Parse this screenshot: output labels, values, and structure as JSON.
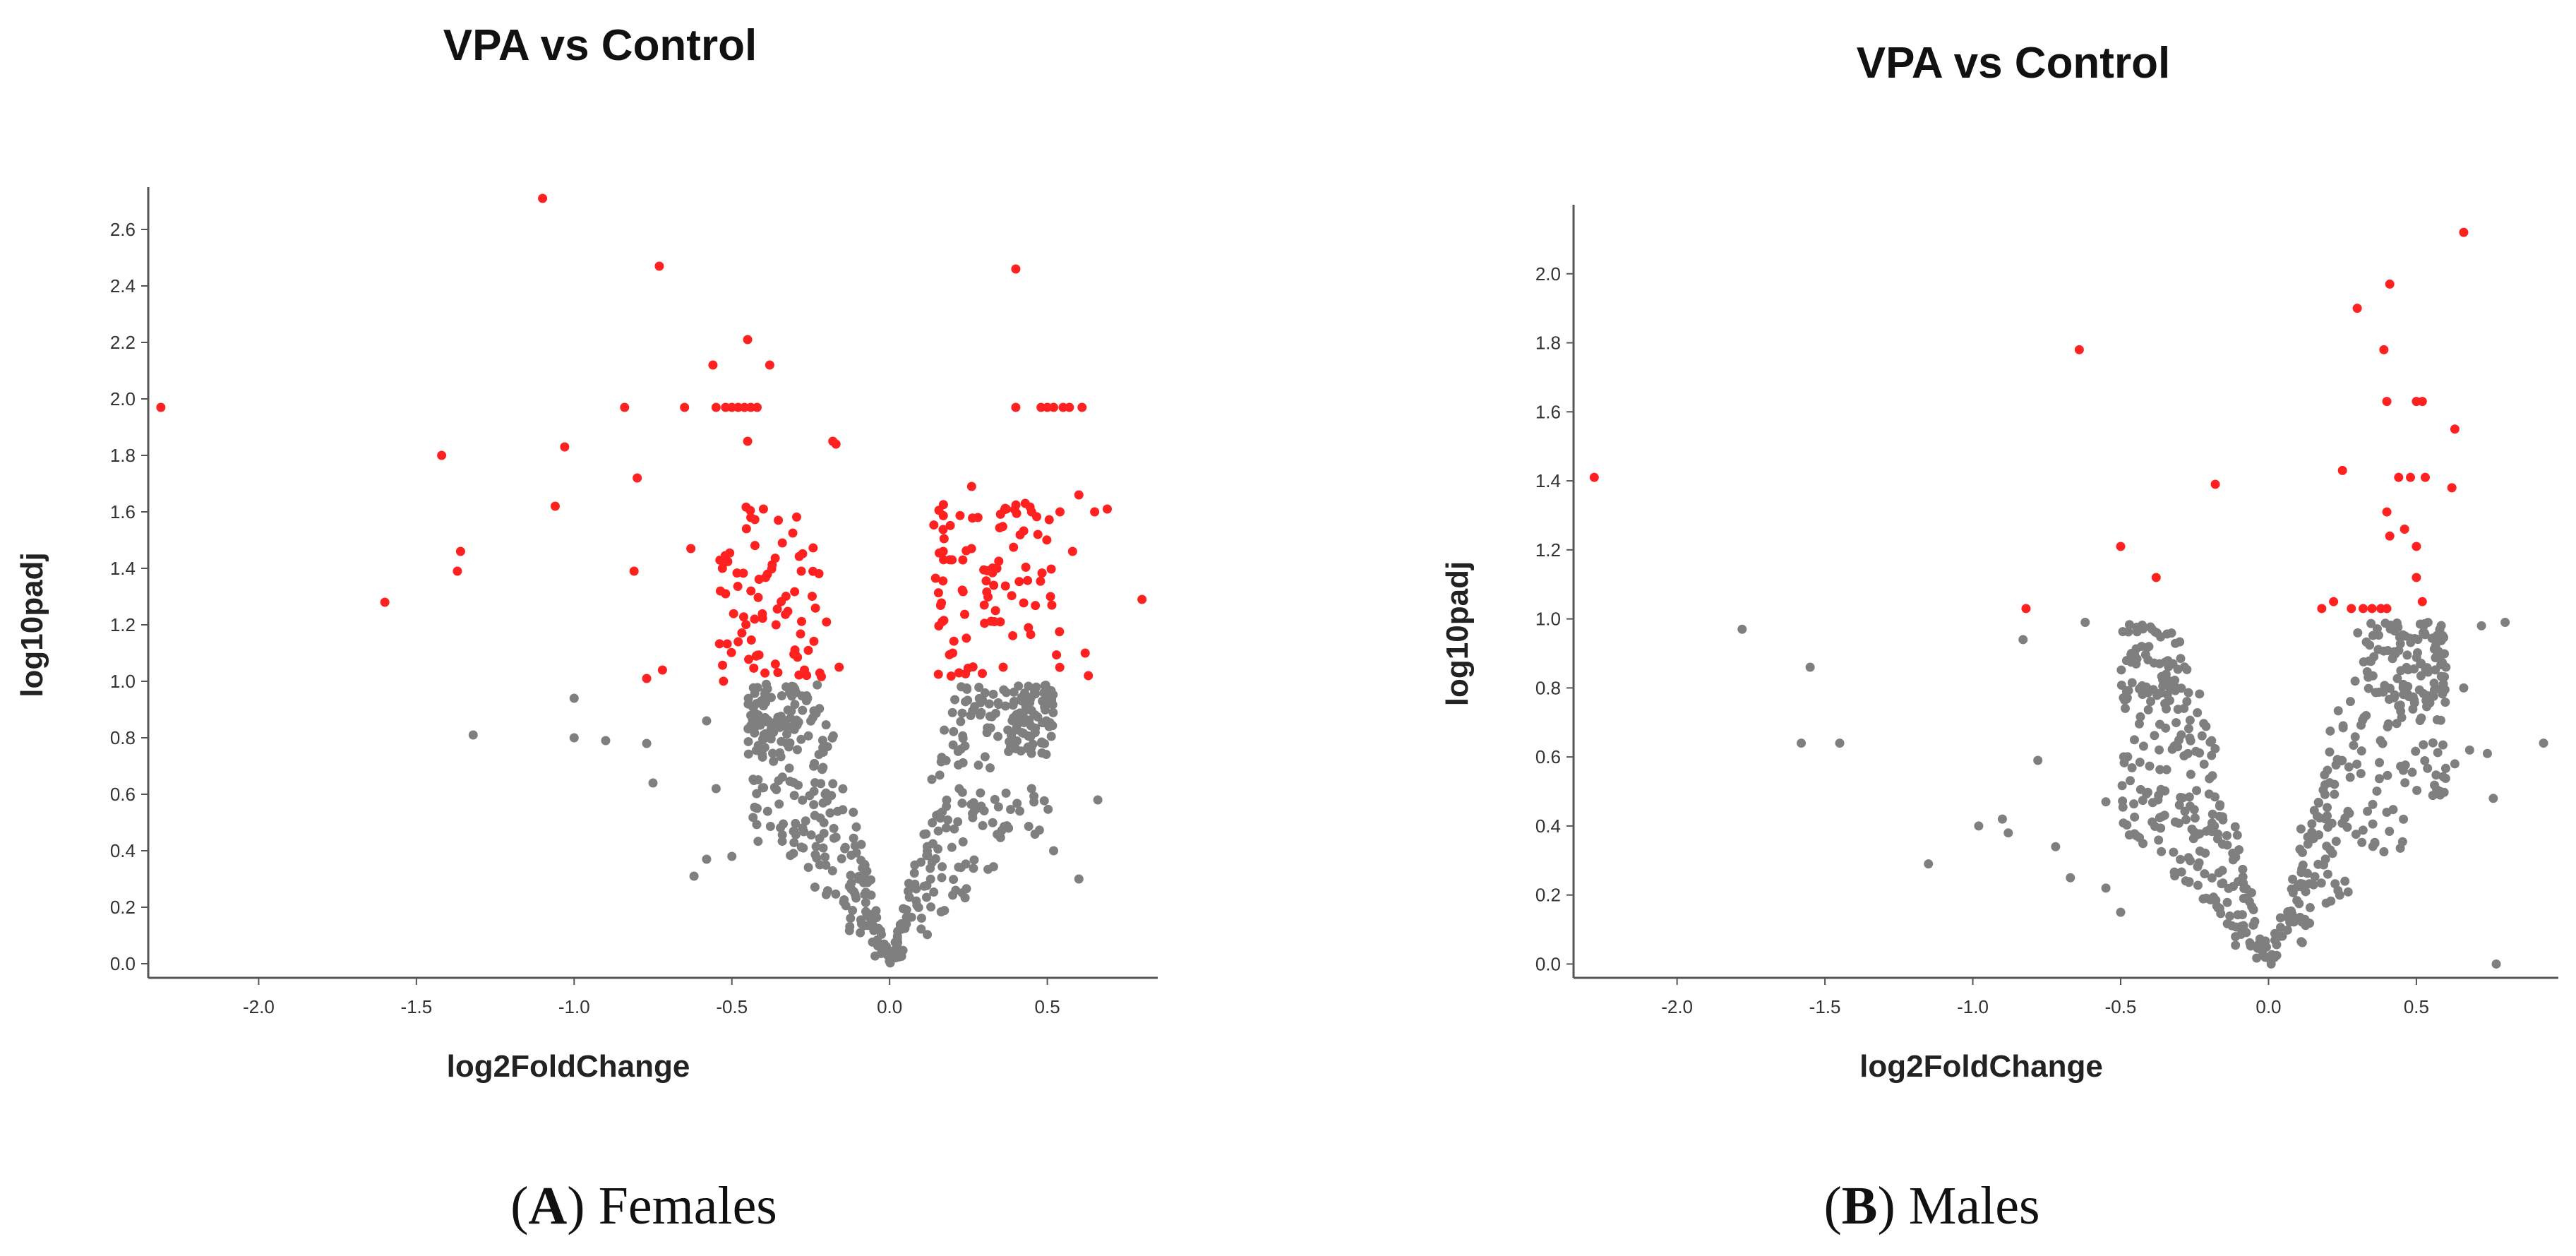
{
  "colors": {
    "significant": "#ff2020",
    "not_significant": "#7f7f7f",
    "axis": "#555555"
  },
  "chart_data": [
    {
      "type": "scatter",
      "title": "VPA vs Control",
      "xlabel": "log2FoldChange",
      "ylabel": "log10padj",
      "xlim": [
        -2.35,
        0.85
      ],
      "ylim": [
        -0.05,
        2.75
      ],
      "xticks": [
        -2.0,
        -1.5,
        -1.0,
        -0.5,
        0.0,
        0.5
      ],
      "yticks": [
        0.0,
        0.2,
        0.4,
        0.6,
        0.8,
        1.0,
        1.2,
        1.4,
        1.6,
        1.8,
        2.0,
        2.2,
        2.4,
        2.6
      ],
      "caption_letter": "A",
      "caption_text": "Females",
      "significant_threshold": 1.0,
      "significant_points": [
        [
          -2.31,
          1.97
        ],
        [
          -1.6,
          1.28
        ],
        [
          -1.42,
          1.8
        ],
        [
          -1.36,
          1.46
        ],
        [
          -1.37,
          1.39
        ],
        [
          -1.1,
          2.71
        ],
        [
          -1.06,
          1.62
        ],
        [
          -1.03,
          1.83
        ],
        [
          -0.84,
          1.97
        ],
        [
          -0.8,
          1.72
        ],
        [
          -0.81,
          1.39
        ],
        [
          -0.77,
          1.01
        ],
        [
          -0.73,
          2.47
        ],
        [
          -0.72,
          1.04
        ],
        [
          -0.65,
          1.97
        ],
        [
          -0.63,
          1.47
        ],
        [
          -0.56,
          2.12
        ],
        [
          -0.55,
          1.97
        ],
        [
          -0.52,
          1.97
        ],
        [
          -0.5,
          1.97
        ],
        [
          -0.48,
          1.97
        ],
        [
          -0.46,
          1.97
        ],
        [
          -0.44,
          1.97
        ],
        [
          -0.42,
          1.97
        ],
        [
          -0.45,
          2.21
        ],
        [
          -0.38,
          2.12
        ],
        [
          -0.45,
          1.85
        ],
        [
          -0.18,
          1.85
        ],
        [
          -0.17,
          1.84
        ],
        [
          -0.4,
          1.61
        ],
        [
          -0.44,
          1.58
        ],
        [
          -0.53,
          1.4
        ],
        [
          -0.52,
          1.31
        ],
        [
          -0.48,
          1.14
        ],
        [
          -0.36,
          1.2
        ],
        [
          -0.3,
          1.1
        ],
        [
          -0.27,
          1.04
        ],
        [
          -0.2,
          1.21
        ],
        [
          -0.16,
          1.05
        ],
        [
          0.17,
          1.46
        ],
        [
          0.2,
          1.1
        ],
        [
          0.22,
          1.03
        ],
        [
          0.26,
          1.69
        ],
        [
          0.28,
          1.58
        ],
        [
          0.33,
          1.34
        ],
        [
          0.34,
          1.4
        ],
        [
          0.37,
          1.61
        ],
        [
          0.4,
          2.46
        ],
        [
          0.4,
          1.97
        ],
        [
          0.43,
          1.63
        ],
        [
          0.45,
          1.6
        ],
        [
          0.47,
          1.52
        ],
        [
          0.48,
          1.97
        ],
        [
          0.5,
          1.97
        ],
        [
          0.52,
          1.97
        ],
        [
          0.54,
          1.6
        ],
        [
          0.55,
          1.97
        ],
        [
          0.57,
          1.97
        ],
        [
          0.58,
          1.46
        ],
        [
          0.6,
          1.66
        ],
        [
          0.61,
          1.97
        ],
        [
          0.62,
          1.1
        ],
        [
          0.63,
          1.02
        ],
        [
          0.65,
          1.6
        ],
        [
          0.69,
          1.61
        ],
        [
          0.8,
          1.29
        ],
        [
          0.36,
          1.05
        ],
        [
          0.44,
          1.19
        ],
        [
          0.51,
          1.3
        ],
        [
          0.3,
          1.27
        ],
        [
          -0.34,
          1.49
        ],
        [
          -0.28,
          1.39
        ]
      ],
      "clusters": [
        {
          "x_center": -0.38,
          "x_spread": 0.17,
          "y_min": 1.0,
          "y_max": 1.62,
          "n": 70,
          "seed": 11
        },
        {
          "x_center": 0.34,
          "x_spread": 0.2,
          "y_min": 1.0,
          "y_max": 1.65,
          "n": 80,
          "seed": 23
        }
      ],
      "non_significant_points": [
        [
          -1.32,
          0.81
        ],
        [
          -1.0,
          0.94
        ],
        [
          -1.0,
          0.8
        ],
        [
          -0.9,
          0.79
        ],
        [
          -0.77,
          0.78
        ],
        [
          -0.75,
          0.64
        ],
        [
          -0.62,
          0.31
        ],
        [
          -0.58,
          0.37
        ],
        [
          -0.58,
          0.86
        ],
        [
          -0.55,
          0.62
        ],
        [
          -0.5,
          0.38
        ],
        [
          -0.42,
          0.55
        ],
        [
          0.52,
          0.4
        ],
        [
          0.6,
          0.3
        ],
        [
          0.66,
          0.58
        ],
        [
          0.45,
          0.62
        ],
        [
          0.42,
          0.93
        ]
      ],
      "volcano": {
        "n": 520,
        "slope": 4.2,
        "y_max": 1.0,
        "x_min": -0.45,
        "x_max": 0.52,
        "seed": 7
      }
    },
    {
      "type": "scatter",
      "title": "VPA vs Control",
      "xlabel": "log2FoldChange",
      "ylabel": "log10padj",
      "xlim": [
        -2.35,
        0.98
      ],
      "ylim": [
        -0.04,
        2.2
      ],
      "xticks": [
        -2.0,
        -1.5,
        -1.0,
        -0.5,
        0.0,
        0.5
      ],
      "yticks": [
        0.0,
        0.2,
        0.4,
        0.6,
        0.8,
        1.0,
        1.2,
        1.4,
        1.6,
        1.8,
        2.0
      ],
      "caption_letter": "B",
      "caption_text": "Males",
      "significant_threshold": 1.0,
      "significant_points": [
        [
          -2.28,
          1.41
        ],
        [
          -0.82,
          1.03
        ],
        [
          -0.64,
          1.78
        ],
        [
          -0.5,
          1.21
        ],
        [
          -0.38,
          1.12
        ],
        [
          -0.18,
          1.39
        ],
        [
          0.18,
          1.03
        ],
        [
          0.22,
          1.05
        ],
        [
          0.25,
          1.43
        ],
        [
          0.28,
          1.03
        ],
        [
          0.3,
          1.9
        ],
        [
          0.32,
          1.03
        ],
        [
          0.35,
          1.03
        ],
        [
          0.38,
          1.03
        ],
        [
          0.4,
          1.03
        ],
        [
          0.39,
          1.78
        ],
        [
          0.4,
          1.63
        ],
        [
          0.41,
          1.97
        ],
        [
          0.4,
          1.31
        ],
        [
          0.41,
          1.24
        ],
        [
          0.44,
          1.41
        ],
        [
          0.46,
          1.26
        ],
        [
          0.48,
          1.41
        ],
        [
          0.5,
          1.21
        ],
        [
          0.5,
          1.63
        ],
        [
          0.52,
          1.63
        ],
        [
          0.5,
          1.12
        ],
        [
          0.53,
          1.41
        ],
        [
          0.52,
          1.05
        ],
        [
          0.63,
          1.55
        ],
        [
          0.62,
          1.38
        ],
        [
          0.66,
          2.12
        ]
      ],
      "clusters": [],
      "non_significant_points": [
        [
          -1.78,
          0.97
        ],
        [
          -1.55,
          0.86
        ],
        [
          -1.58,
          0.64
        ],
        [
          -1.45,
          0.64
        ],
        [
          -1.15,
          0.29
        ],
        [
          -0.98,
          0.4
        ],
        [
          -0.9,
          0.42
        ],
        [
          -0.88,
          0.38
        ],
        [
          -0.83,
          0.94
        ],
        [
          -0.78,
          0.59
        ],
        [
          -0.72,
          0.34
        ],
        [
          -0.67,
          0.25
        ],
        [
          -0.62,
          0.99
        ],
        [
          -0.55,
          0.47
        ],
        [
          -0.55,
          0.22
        ],
        [
          -0.5,
          0.15
        ],
        [
          -0.48,
          0.79
        ],
        [
          0.66,
          0.8
        ],
        [
          0.68,
          0.62
        ],
        [
          0.72,
          0.98
        ],
        [
          0.74,
          0.61
        ],
        [
          0.76,
          0.48
        ],
        [
          0.77,
          0.0
        ],
        [
          0.8,
          0.99
        ],
        [
          0.93,
          0.64
        ],
        [
          0.63,
          0.58
        ],
        [
          0.6,
          0.86
        ],
        [
          0.58,
          0.5
        ]
      ],
      "volcano": {
        "n": 560,
        "slope": 3.0,
        "y_max": 1.0,
        "x_min": -0.5,
        "x_max": 0.6,
        "seed": 17
      }
    }
  ]
}
